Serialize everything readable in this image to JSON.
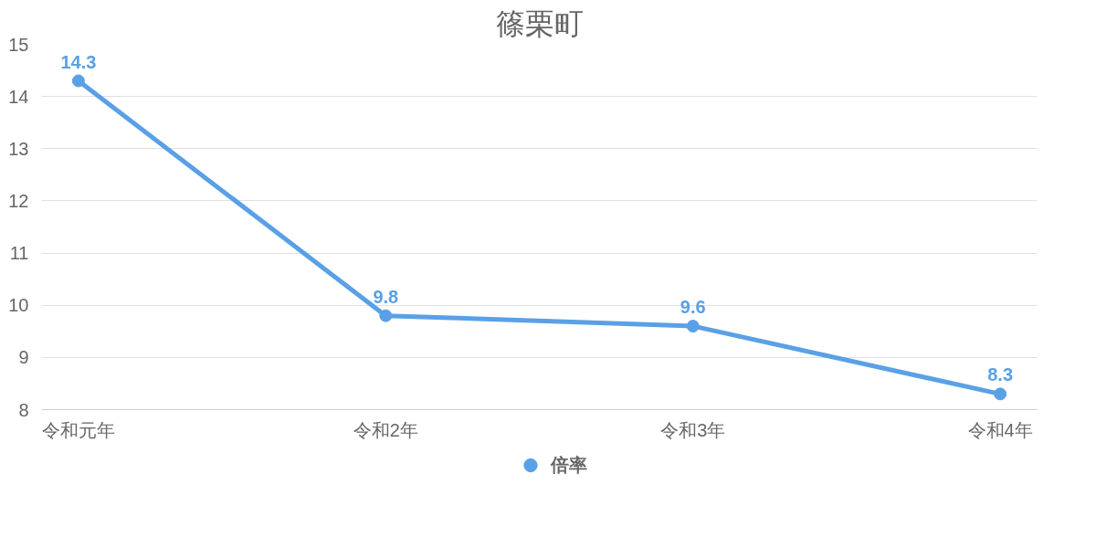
{
  "chart_data": {
    "type": "line",
    "title": "篠栗町",
    "categories": [
      "令和元年",
      "令和2年",
      "令和3年",
      "令和4年"
    ],
    "series": [
      {
        "name": "倍率",
        "color": "#5aa0e6",
        "values": [
          14.3,
          9.8,
          9.6,
          8.3
        ]
      }
    ],
    "ylim": [
      8,
      15
    ],
    "yticks": [
      8,
      9,
      10,
      11,
      12,
      13,
      14,
      15
    ],
    "grid": "y",
    "legend": "bottom",
    "marker": "circle",
    "line_style": "solid",
    "data_labels": true
  }
}
